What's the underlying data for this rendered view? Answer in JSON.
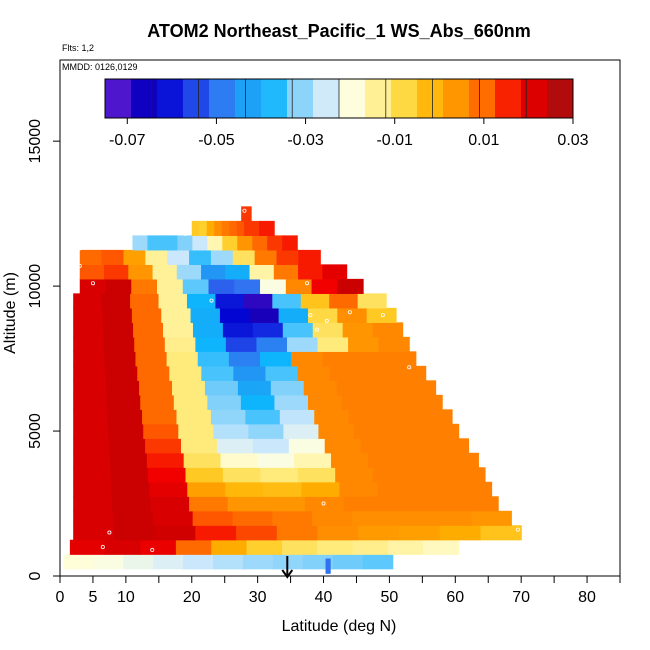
{
  "chart_data": {
    "type": "heatmap",
    "title": "ATOM2 Northeast_Pacific_1 WS_Abs_660nm",
    "annotations": {
      "flights": "Flts: 1,2",
      "dates": "MMDD: 0126,0129"
    },
    "xlabel": "Latitude (deg N)",
    "ylabel": "Altitude (m)",
    "xlim": [
      0,
      85
    ],
    "ylim": [
      0,
      17800
    ],
    "x_ticks": [
      0,
      5,
      10,
      20,
      30,
      40,
      50,
      60,
      70,
      80
    ],
    "y_ticks": [
      0,
      5000,
      10000,
      15000
    ],
    "colorbar": {
      "range": [
        -0.075,
        0.03
      ],
      "tick_values": [
        -0.07,
        -0.05,
        -0.03,
        -0.01,
        0.01,
        0.03
      ],
      "tick_labels": [
        "-0.07",
        "-0.05",
        "-0.03",
        "-0.01",
        "0.01",
        "0.03"
      ],
      "colors": [
        "#7a2be0",
        "#1c00b8",
        "#0000d0",
        "#1836e6",
        "#3271f0",
        "#1f9cf5",
        "#0fb5fc",
        "#87d2fa",
        "#cfe9fb",
        "#ffffde",
        "#ffef8e",
        "#ffd536",
        "#ffb100",
        "#ff8d00",
        "#ff5f00",
        "#f40000",
        "#cc0000",
        "#9b1515"
      ]
    },
    "rows": [
      {
        "alt": 500,
        "x0": 0.5,
        "x1": 50.5,
        "v": [
          -0.019,
          -0.02,
          -0.022,
          -0.024,
          -0.026,
          -0.028,
          -0.03,
          -0.031,
          -0.032,
          -0.033,
          -0.034
        ]
      },
      {
        "alt": 1000,
        "x0": 1.5,
        "x1": 60.5,
        "v": [
          0.02,
          0.022,
          0.019,
          0.01,
          0.0,
          -0.006,
          -0.01,
          -0.012,
          -0.013,
          -0.015,
          -0.017
        ]
      },
      {
        "alt": 1500,
        "x0": 2,
        "x1": 70,
        "v": [
          0.022,
          0.024,
          0.023,
          0.016,
          0.013,
          0.008,
          0.005,
          0.003,
          0.002,
          0.0,
          -0.004
        ]
      },
      {
        "alt": 2000,
        "x0": 2,
        "x1": 68.5,
        "v": [
          0.022,
          0.024,
          0.022,
          0.012,
          0.01,
          0.008,
          0.006,
          0.005,
          0.005,
          0.005,
          0.004
        ]
      },
      {
        "alt": 2500,
        "x0": 2,
        "x1": 66.5,
        "v": [
          0.022,
          0.024,
          0.022,
          0.008,
          0.004,
          0.004,
          0.006,
          0.007,
          0.007,
          0.007,
          0.007
        ]
      },
      {
        "alt": 3000,
        "x0": 2,
        "x1": 65.5,
        "v": [
          0.022,
          0.024,
          0.02,
          0.002,
          -0.002,
          -0.003,
          0.0,
          0.006,
          0.007,
          0.007,
          0.007
        ]
      },
      {
        "alt": 3500,
        "x0": 2,
        "x1": 64.5,
        "v": [
          0.022,
          0.024,
          0.018,
          -0.005,
          -0.01,
          -0.012,
          -0.01,
          0.006,
          0.007,
          0.007,
          0.007
        ]
      },
      {
        "alt": 4000,
        "x0": 2,
        "x1": 63.5,
        "v": [
          0.022,
          0.024,
          0.016,
          -0.01,
          -0.018,
          -0.02,
          -0.016,
          0.006,
          0.007,
          0.007,
          0.007
        ]
      },
      {
        "alt": 4500,
        "x0": 2,
        "x1": 62,
        "v": [
          0.022,
          0.024,
          0.014,
          -0.012,
          -0.024,
          -0.026,
          -0.02,
          0.006,
          0.007,
          0.007,
          0.007
        ]
      },
      {
        "alt": 5000,
        "x0": 2,
        "x1": 60.5,
        "v": [
          0.022,
          0.024,
          0.012,
          -0.012,
          -0.028,
          -0.031,
          -0.024,
          0.006,
          0.007,
          0.007,
          0.007
        ]
      },
      {
        "alt": 5500,
        "x0": 2,
        "x1": 59.5,
        "v": [
          0.022,
          0.024,
          0.01,
          -0.012,
          -0.031,
          -0.035,
          -0.027,
          0.006,
          0.007,
          0.007,
          0.007
        ]
      },
      {
        "alt": 6000,
        "x0": 2,
        "x1": 58,
        "v": [
          0.022,
          0.024,
          0.01,
          -0.012,
          -0.032,
          -0.038,
          -0.03,
          0.006,
          0.007,
          0.007,
          0.007
        ]
      },
      {
        "alt": 6500,
        "x0": 2,
        "x1": 57,
        "v": [
          0.022,
          0.024,
          0.01,
          -0.012,
          -0.033,
          -0.042,
          -0.032,
          0.006,
          0.007,
          0.007,
          0.007
        ]
      },
      {
        "alt": 7000,
        "x0": 2,
        "x1": 55.5,
        "v": [
          0.022,
          0.024,
          0.01,
          -0.012,
          -0.035,
          -0.045,
          -0.035,
          0.006,
          0.007,
          0.007,
          0.007
        ]
      },
      {
        "alt": 7500,
        "x0": 2,
        "x1": 54,
        "v": [
          0.022,
          0.024,
          0.01,
          -0.012,
          -0.036,
          -0.048,
          -0.038,
          0.006,
          0.007,
          0.007,
          0.007
        ]
      },
      {
        "alt": 8000,
        "x0": 2,
        "x1": 53,
        "v": [
          0.022,
          0.024,
          0.01,
          -0.013,
          -0.038,
          -0.055,
          -0.048,
          -0.03,
          -0.012,
          0.004,
          0.006
        ]
      },
      {
        "alt": 8500,
        "x0": 2,
        "x1": 52,
        "v": [
          0.022,
          0.024,
          0.01,
          -0.014,
          -0.04,
          -0.06,
          -0.058,
          -0.035,
          -0.01,
          0.004,
          0.006
        ]
      },
      {
        "alt": 9000,
        "x0": 2,
        "x1": 51,
        "v": [
          0.022,
          0.024,
          0.01,
          -0.014,
          -0.04,
          -0.062,
          -0.068,
          -0.04,
          -0.008,
          0.005,
          -0.005
        ]
      },
      {
        "alt": 9500,
        "x0": 2,
        "x1": 49.5,
        "v": [
          0.022,
          0.024,
          0.01,
          -0.014,
          -0.038,
          -0.06,
          -0.07,
          -0.035,
          -0.004,
          0.01,
          -0.01
        ]
      },
      {
        "alt": 10000,
        "x0": 3,
        "x1": 46,
        "v": [
          0.022,
          0.024,
          0.008,
          -0.014,
          -0.034,
          -0.052,
          -0.05,
          -0.02,
          0.006,
          0.018,
          0.024
        ]
      },
      {
        "alt": 10500,
        "x0": 3,
        "x1": 43.5,
        "v": [
          0.012,
          0.014,
          0.004,
          -0.014,
          -0.03,
          -0.045,
          -0.04,
          -0.015,
          0.008,
          0.016,
          0.02
        ]
      },
      {
        "alt": 11000,
        "x0": 3,
        "x1": 39.5,
        "v": [
          0.01,
          0.012,
          0.002,
          -0.014,
          -0.026,
          -0.036,
          -0.03,
          -0.01,
          0.008,
          0.014,
          0.016
        ]
      },
      {
        "alt": 11500,
        "x0": 11,
        "x1": 36,
        "v": [
          -0.03,
          -0.035,
          -0.035,
          -0.032,
          -0.026,
          -0.016,
          -0.006,
          0.004,
          0.01,
          0.014,
          0.016
        ]
      },
      {
        "alt": 12000,
        "x0": 20,
        "x1": 32.5,
        "v": [
          -0.005,
          -0.006,
          0.0,
          0.005,
          0.008,
          0.01,
          0.012,
          0.014,
          0.014,
          0.016,
          0.016
        ]
      },
      {
        "alt": 12500,
        "x0": 27.5,
        "x1": 29,
        "v": [
          0.014,
          0.014,
          0.014,
          0.014,
          0.014,
          0.014,
          0.014,
          0.014,
          0.014,
          0.014,
          0.014
        ]
      },
      {
        "alt": 350,
        "x0": 40.3,
        "x1": 41,
        "v": [
          -0.05,
          -0.05,
          -0.05,
          -0.05,
          -0.05,
          -0.05,
          -0.05,
          -0.05,
          -0.05,
          -0.05,
          -0.05
        ]
      }
    ],
    "sample_points": [
      {
        "x": 6.5,
        "y": 1000
      },
      {
        "x": 7.5,
        "y": 1500
      },
      {
        "x": 14,
        "y": 900
      },
      {
        "x": 5,
        "y": 10100
      },
      {
        "x": 3,
        "y": 10700
      },
      {
        "x": 3,
        "y": 11300
      },
      {
        "x": 19,
        "y": 11800
      },
      {
        "x": 28,
        "y": 12600
      },
      {
        "x": 23,
        "y": 9500
      },
      {
        "x": 37.5,
        "y": 10100
      },
      {
        "x": 38,
        "y": 9000
      },
      {
        "x": 39,
        "y": 8500
      },
      {
        "x": 40.5,
        "y": 8800
      },
      {
        "x": 44,
        "y": 9100
      },
      {
        "x": 49,
        "y": 9000
      },
      {
        "x": 53,
        "y": 7200
      },
      {
        "x": 40,
        "y": 2500
      },
      {
        "x": 69.5,
        "y": 1600
      }
    ],
    "marker_arrow": {
      "x": 34.5
    }
  }
}
